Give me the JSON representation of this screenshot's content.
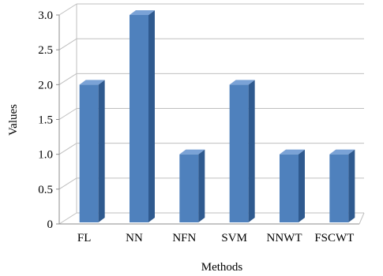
{
  "chart_data": {
    "type": "bar",
    "title": "",
    "xlabel": "Methods",
    "ylabel": "Values",
    "categories": [
      "FL",
      "NN",
      "NFN",
      "SVM",
      "NNWT",
      "FSCWT"
    ],
    "values": [
      2.0,
      3.0,
      1.0,
      2.0,
      1.0,
      1.0
    ],
    "ylim": [
      0,
      3.0
    ],
    "yticks": [
      "0",
      "0.5",
      "1.0",
      "1.5",
      "2.0",
      "2.5",
      "3.0"
    ],
    "grid": true,
    "three_d": true,
    "colors": {
      "bar_front": "#4f81bd",
      "bar_side": "#2f5a8f",
      "bar_top": "#7aa2d6",
      "grid": "#bfbfbf",
      "axis": "#8c8c8c"
    }
  }
}
